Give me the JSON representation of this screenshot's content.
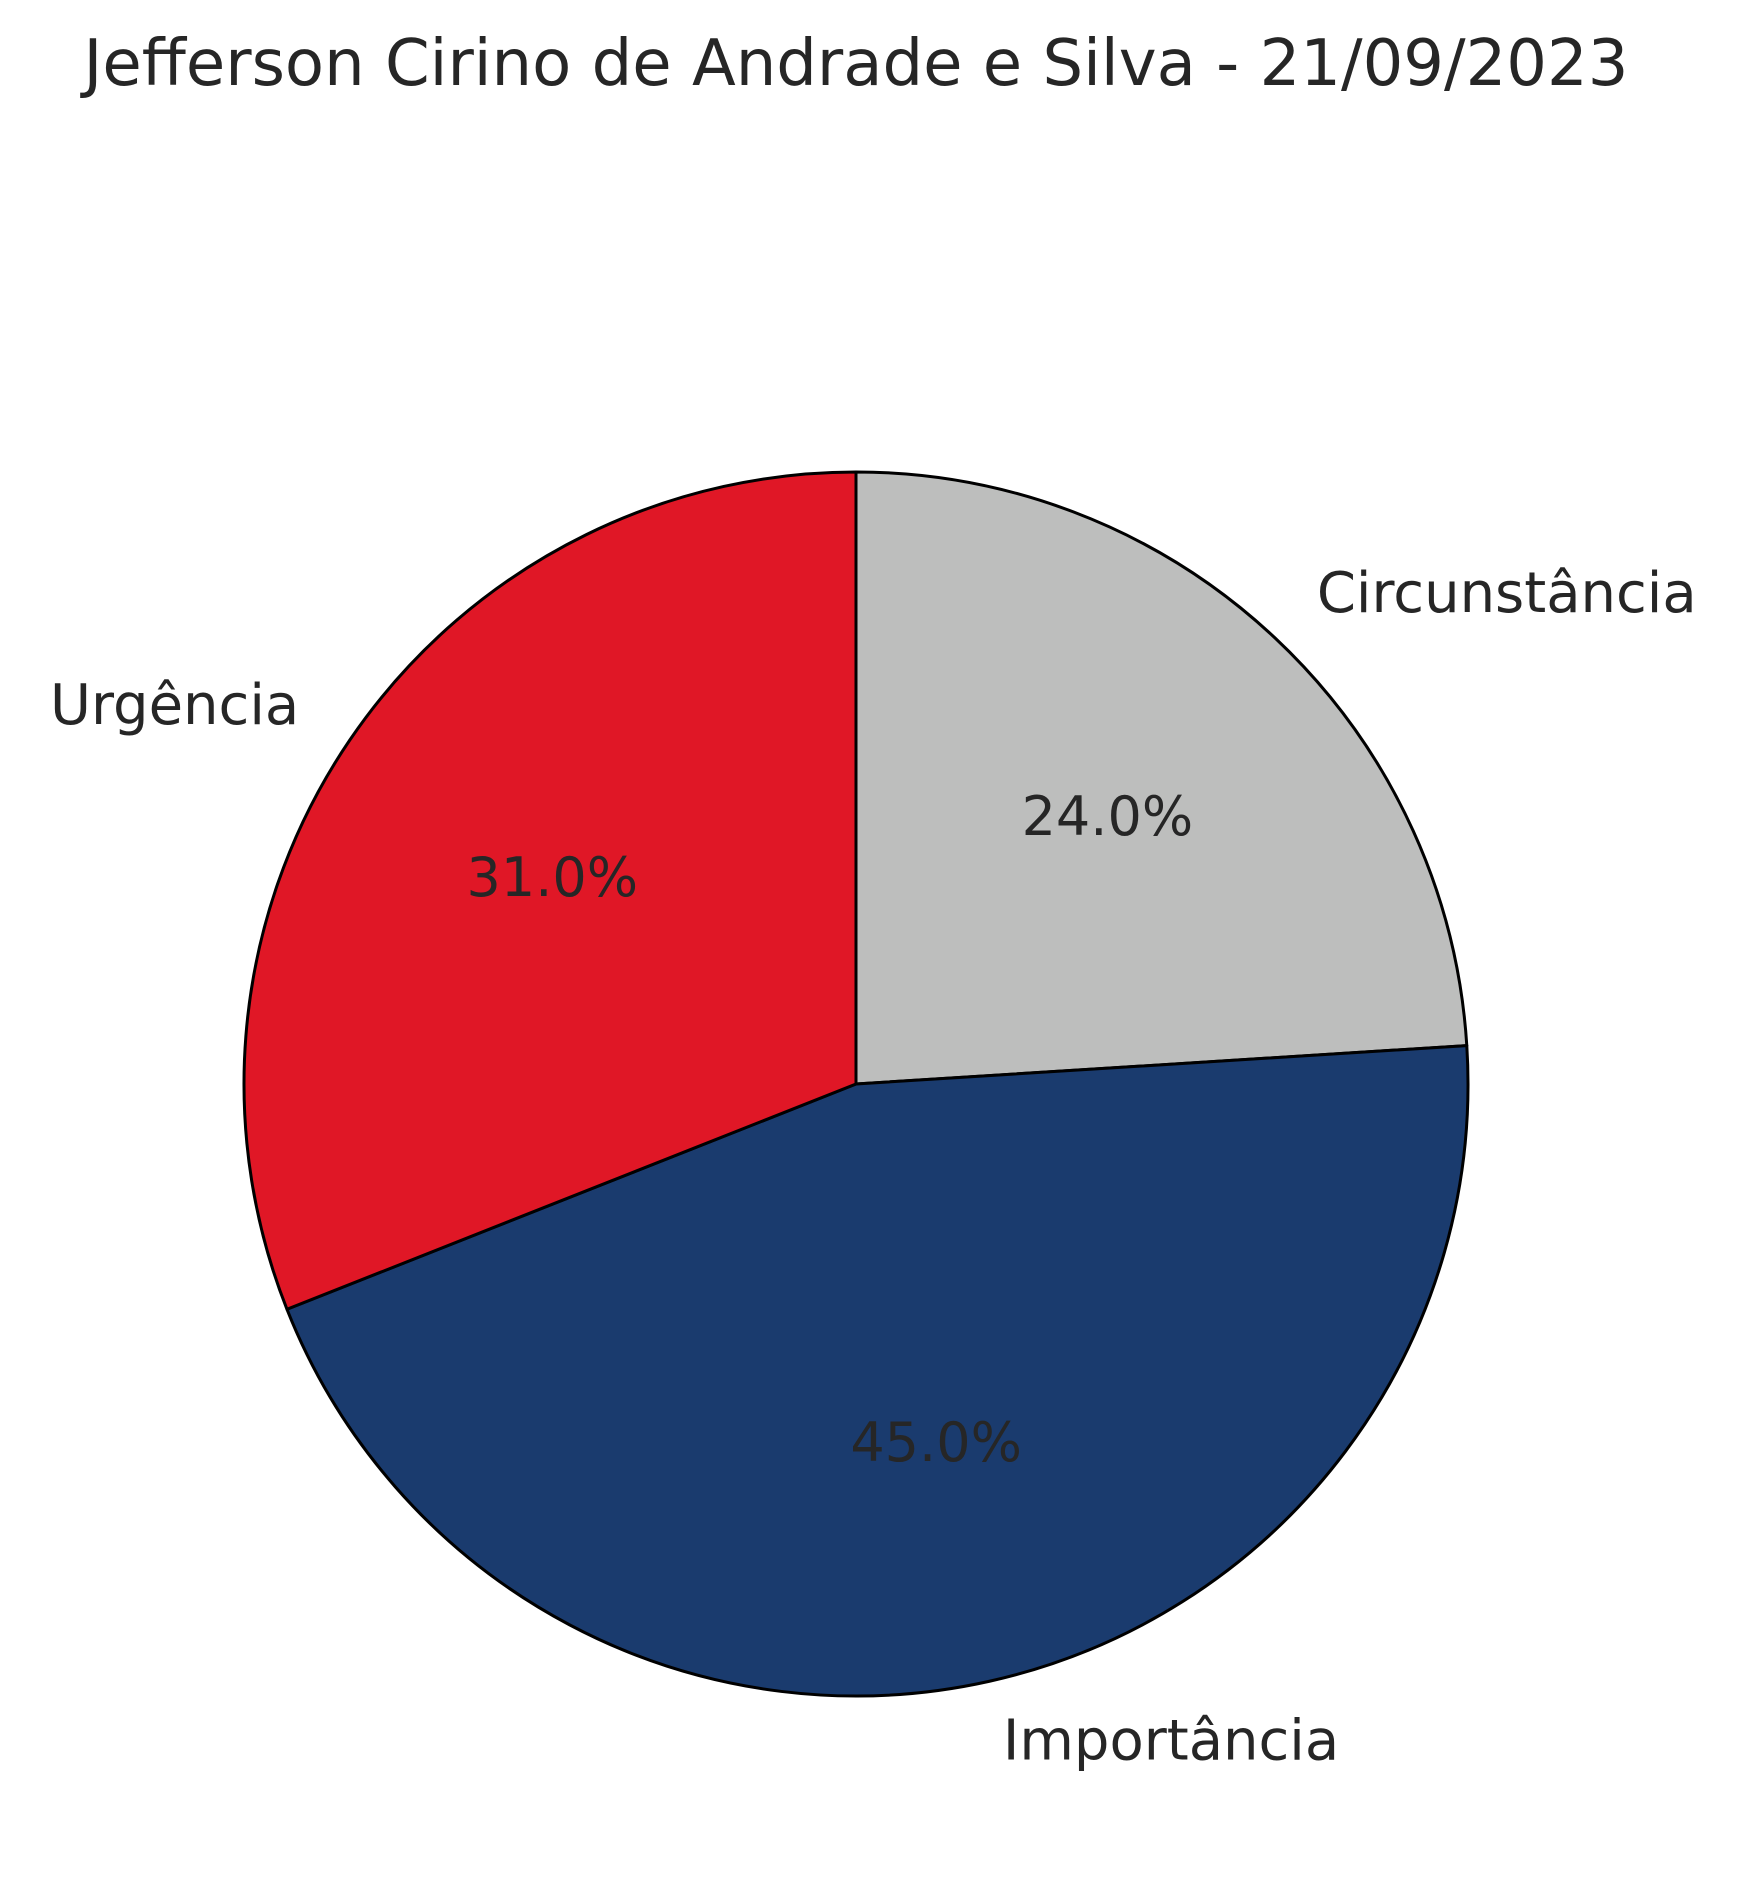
{
  "chart_data": {
    "type": "pie",
    "title": "Jefferson Cirino de Andrade e Silva - 21/09/2023",
    "slices": [
      {
        "label": "Circunstância",
        "value": 24.0,
        "percent_label": "24.0%",
        "color": "#bdbebd"
      },
      {
        "label": "Importância",
        "value": 45.0,
        "percent_label": "45.0%",
        "color": "#1a3b6e"
      },
      {
        "label": "Urgência",
        "value": 31.0,
        "percent_label": "31.0%",
        "color": "#e01726"
      }
    ],
    "start_angle": "12 o'clock",
    "direction": "clockwise",
    "edge_color": "#000000",
    "legend": "none"
  }
}
